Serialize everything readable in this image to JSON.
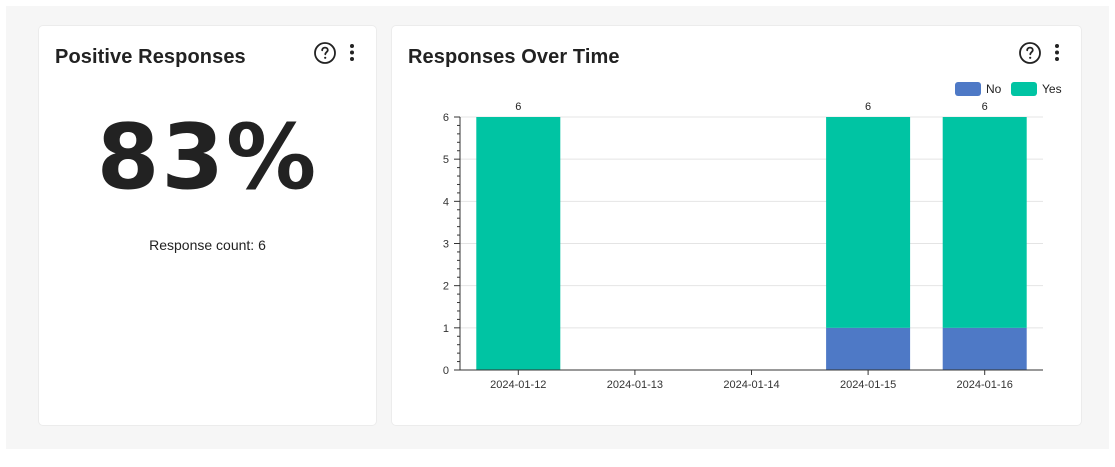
{
  "positive_card": {
    "title": "Positive Responses",
    "value": "83%",
    "count_label": "Response count:",
    "count_value": "6",
    "help_icon": "question-circle-icon",
    "menu_icon": "vertical-dots-icon"
  },
  "timeline_card": {
    "title": "Responses Over Time",
    "help_icon": "question-circle-icon",
    "menu_icon": "vertical-dots-icon"
  },
  "colors": {
    "no": "#4e79c6",
    "yes": "#00c4a3",
    "grid": "#e4e4e4",
    "axis": "#333333",
    "text": "#222222"
  },
  "chart_data": {
    "type": "bar",
    "stacked": true,
    "categories": [
      "2024-01-12",
      "2024-01-13",
      "2024-01-14",
      "2024-01-15",
      "2024-01-16"
    ],
    "series": [
      {
        "name": "No",
        "values": [
          0,
          0,
          0,
          1,
          1
        ]
      },
      {
        "name": "Yes",
        "values": [
          6,
          0,
          0,
          5,
          5
        ]
      }
    ],
    "totals": [
      "6",
      "",
      "",
      "6",
      "6"
    ],
    "ylim": [
      0,
      6
    ],
    "yticks": [
      0,
      1,
      2,
      3,
      4,
      5,
      6
    ],
    "grid": true,
    "legend": "top-right",
    "title": "",
    "xlabel": "",
    "ylabel": ""
  }
}
